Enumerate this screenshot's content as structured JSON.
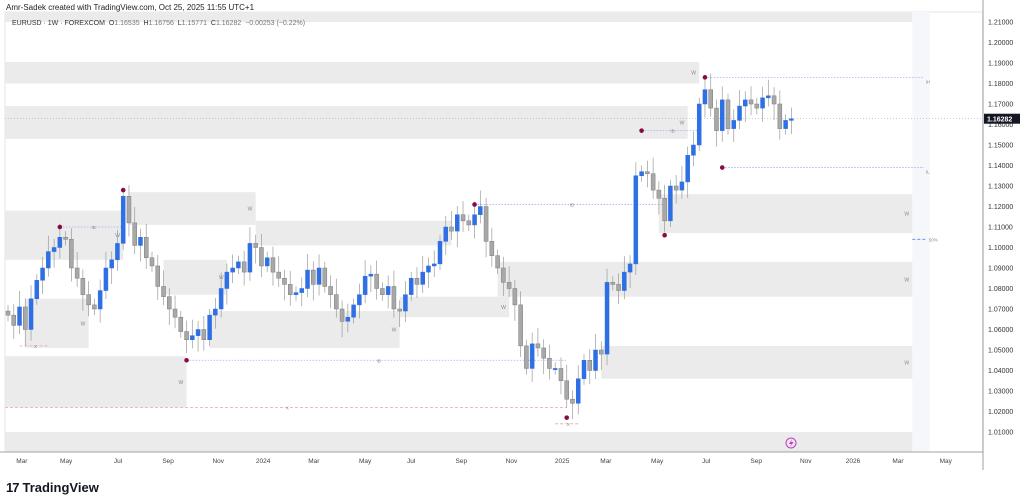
{
  "credit": "Amr-Sadek created with TradingView.com, Oct 25, 2025 11:55 UTC+1",
  "legend": {
    "symbol": "EURUSD · 1W · FOREXCOM",
    "o_label": "O",
    "o": "1.16535",
    "h_label": "H",
    "h": "1.16756",
    "l_label": "L",
    "l": "1.15771",
    "c_label": "C",
    "c": "1.16282",
    "change": "−0.00253 (−0.22%)"
  },
  "footer": {
    "brand": "TradingView",
    "logo": "17"
  },
  "colors": {
    "up": "#2f6fe4",
    "down": "#a8a8a8",
    "zone": "#ebebeb",
    "pivot": "#8b0a45",
    "level": "#9fb3f0",
    "dash": "#f0a0a0"
  },
  "chart_data": {
    "type": "candlestick",
    "title": "EURUSD · 1W · FOREXCOM",
    "xunit": "week index from Feb 2023",
    "ylim": [
      1.0,
      1.215
    ],
    "last_price": "1.16282",
    "closes": [
      1.067,
      1.062,
      1.071,
      1.06,
      1.075,
      1.084,
      1.09,
      1.098,
      1.1,
      1.105,
      1.104,
      1.09,
      1.085,
      1.077,
      1.072,
      1.07,
      1.079,
      1.09,
      1.094,
      1.102,
      1.125,
      1.112,
      1.101,
      1.105,
      1.095,
      1.091,
      1.081,
      1.076,
      1.07,
      1.066,
      1.059,
      1.055,
      1.057,
      1.06,
      1.055,
      1.067,
      1.07,
      1.08,
      1.088,
      1.09,
      1.093,
      1.088,
      1.102,
      1.1,
      1.091,
      1.095,
      1.088,
      1.085,
      1.082,
      1.077,
      1.078,
      1.08,
      1.089,
      1.082,
      1.09,
      1.081,
      1.077,
      1.07,
      1.064,
      1.066,
      1.072,
      1.077,
      1.086,
      1.087,
      1.08,
      1.077,
      1.081,
      1.07,
      1.069,
      1.077,
      1.085,
      1.082,
      1.088,
      1.091,
      1.092,
      1.103,
      1.11,
      1.108,
      1.116,
      1.113,
      1.111,
      1.116,
      1.12,
      1.103,
      1.096,
      1.09,
      1.083,
      1.08,
      1.072,
      1.052,
      1.041,
      1.053,
      1.051,
      1.046,
      1.041,
      1.041,
      1.035,
      1.026,
      1.024,
      1.036,
      1.045,
      1.04,
      1.05,
      1.048,
      1.083,
      1.082,
      1.079,
      1.088,
      1.092,
      1.135,
      1.137,
      1.136,
      1.128,
      1.124,
      1.113,
      1.13,
      1.128,
      1.132,
      1.145,
      1.15,
      1.17,
      1.177,
      1.168,
      1.157,
      1.172,
      1.158,
      1.162,
      1.169,
      1.172,
      1.17,
      1.168,
      1.173,
      1.174,
      1.17,
      1.158,
      1.162,
      1.16282
    ],
    "yticks": [
      "1.21000",
      "1.20000",
      "1.19000",
      "1.18000",
      "1.17000",
      "1.16000",
      "1.15000",
      "1.14000",
      "1.13000",
      "1.12000",
      "1.11000",
      "1.10000",
      "1.09000",
      "1.08000",
      "1.07000",
      "1.06000",
      "1.05000",
      "1.04000",
      "1.03000",
      "1.02000",
      "1.01000"
    ],
    "xticks": [
      {
        "label": "Mar",
        "w": 2.4
      },
      {
        "label": "May",
        "w": 10.1
      },
      {
        "label": "Jul",
        "w": 19.1
      },
      {
        "label": "Sep",
        "w": 27.8
      },
      {
        "label": "Nov",
        "w": 36.5
      },
      {
        "label": "2024",
        "w": 44.3
      },
      {
        "label": "Mar",
        "w": 53.1
      },
      {
        "label": "May",
        "w": 62
      },
      {
        "label": "Jul",
        "w": 70
      },
      {
        "label": "Sep",
        "w": 78.7
      },
      {
        "label": "Nov",
        "w": 87.4
      },
      {
        "label": "2025",
        "w": 96.2
      },
      {
        "label": "Mar",
        "w": 103.8
      },
      {
        "label": "May",
        "w": 112.7
      },
      {
        "label": "Jul",
        "w": 121.2
      },
      {
        "label": "Sep",
        "w": 129.9
      },
      {
        "label": "Nov",
        "w": 138.5
      },
      {
        "label": "2026",
        "w": 146.7
      },
      {
        "label": "Mar",
        "w": 154.5
      },
      {
        "label": "May",
        "w": 162.8
      }
    ],
    "zones": [
      {
        "w0": -1,
        "w1": 157,
        "top": 1.215,
        "bottom": 1.21,
        "label": ""
      },
      {
        "w0": -1,
        "w1": 120,
        "top": 1.1905,
        "bottom": 1.18,
        "label": "W"
      },
      {
        "w0": -1,
        "w1": 118,
        "top": 1.169,
        "bottom": 1.153,
        "label": "W"
      },
      {
        "w0": -1,
        "w1": 20,
        "top": 1.118,
        "bottom": 1.094,
        "label": "W"
      },
      {
        "w0": 21,
        "w1": 43,
        "top": 1.127,
        "bottom": 1.111,
        "label": "W"
      },
      {
        "w0": 43,
        "w1": 77,
        "top": 1.113,
        "bottom": 1.101,
        "label": "W"
      },
      {
        "w0": 27,
        "w1": 38,
        "top": 1.094,
        "bottom": 1.077,
        "label": "W"
      },
      {
        "w0": 3,
        "w1": 14,
        "top": 1.075,
        "bottom": 1.051,
        "label": "W"
      },
      {
        "w0": 35,
        "w1": 68,
        "top": 1.069,
        "bottom": 1.051,
        "label": "W"
      },
      {
        "w0": 68,
        "w1": 87,
        "top": 1.076,
        "bottom": 1.066,
        "label": "W"
      },
      {
        "w0": -1,
        "w1": 31,
        "top": 1.047,
        "bottom": 1.022,
        "label": "W"
      },
      {
        "w0": 113,
        "w1": 157,
        "top": 1.126,
        "bottom": 1.107,
        "label": "W"
      },
      {
        "w0": 85,
        "w1": 157,
        "top": 1.093,
        "bottom": 1.076,
        "label": "W"
      },
      {
        "w0": 103,
        "w1": 157,
        "top": 1.052,
        "bottom": 1.036,
        "label": "W"
      },
      {
        "w0": -1,
        "w1": 157,
        "top": 1.01,
        "bottom": 1.0,
        "label": ""
      }
    ],
    "pivots": [
      {
        "w": 9,
        "p": 1.11
      },
      {
        "w": 20,
        "p": 1.128
      },
      {
        "w": 31,
        "p": 1.045
      },
      {
        "w": 81,
        "p": 1.121
      },
      {
        "w": 97,
        "p": 1.017
      },
      {
        "w": 110,
        "p": 1.157
      },
      {
        "w": 114,
        "p": 1.106
      },
      {
        "w": 121,
        "p": 1.183
      },
      {
        "w": 124,
        "p": 1.139
      }
    ],
    "levels": [
      {
        "w0": 9,
        "w1": 20,
        "p": 1.11,
        "label": "IB",
        "style": "dot"
      },
      {
        "w0": 31,
        "w1": 97,
        "p": 1.045,
        "label": "IB",
        "style": "dot"
      },
      {
        "w0": 81,
        "w1": 114,
        "p": 1.121,
        "label": "IB",
        "style": "dot"
      },
      {
        "w0": 110,
        "w1": 120,
        "p": 1.157,
        "label": "IB",
        "style": "dot"
      },
      {
        "w0": 121,
        "w1": 159,
        "p": 1.183,
        "label": "IH",
        "style": "dot"
      },
      {
        "w0": 124,
        "w1": 159,
        "p": 1.139,
        "label": "IL",
        "style": "dot"
      },
      {
        "w0": 157,
        "w1": 159.5,
        "p": 1.104,
        "label": "50%",
        "style": "dash"
      },
      {
        "w0": -1,
        "w1": 97,
        "p": 1.022,
        "label": "X",
        "style": "red"
      },
      {
        "w0": 95,
        "w1": 99,
        "p": 1.014,
        "label": "X",
        "style": "red"
      },
      {
        "w0": 2,
        "w1": 7,
        "p": 1.052,
        "label": "X",
        "style": "red"
      }
    ]
  }
}
